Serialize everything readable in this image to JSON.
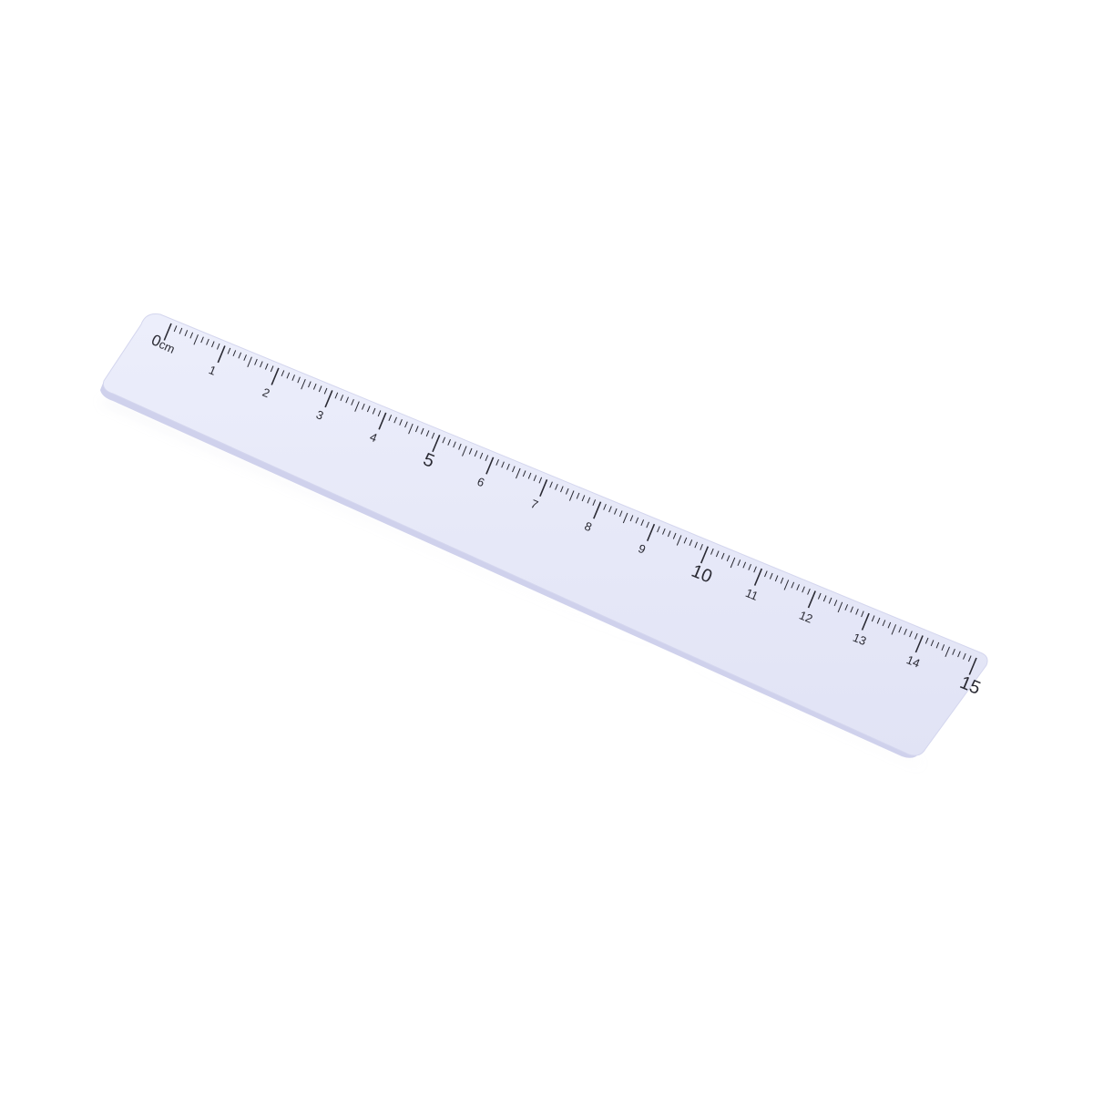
{
  "scene": {
    "background_color": "#ffffff",
    "object": "ruler"
  },
  "ruler": {
    "color": "#e6e7f7",
    "edge_color": "#cfd1ec",
    "marking_color": "#2a2a33",
    "unit_label": "cm",
    "zero_label": "0",
    "length_cm": 15,
    "numbers": [
      "1",
      "2",
      "3",
      "4",
      "5",
      "6",
      "7",
      "8",
      "9",
      "10",
      "11",
      "12",
      "13",
      "14",
      "15"
    ],
    "emphasized_numbers": [
      "5",
      "10",
      "15"
    ]
  }
}
